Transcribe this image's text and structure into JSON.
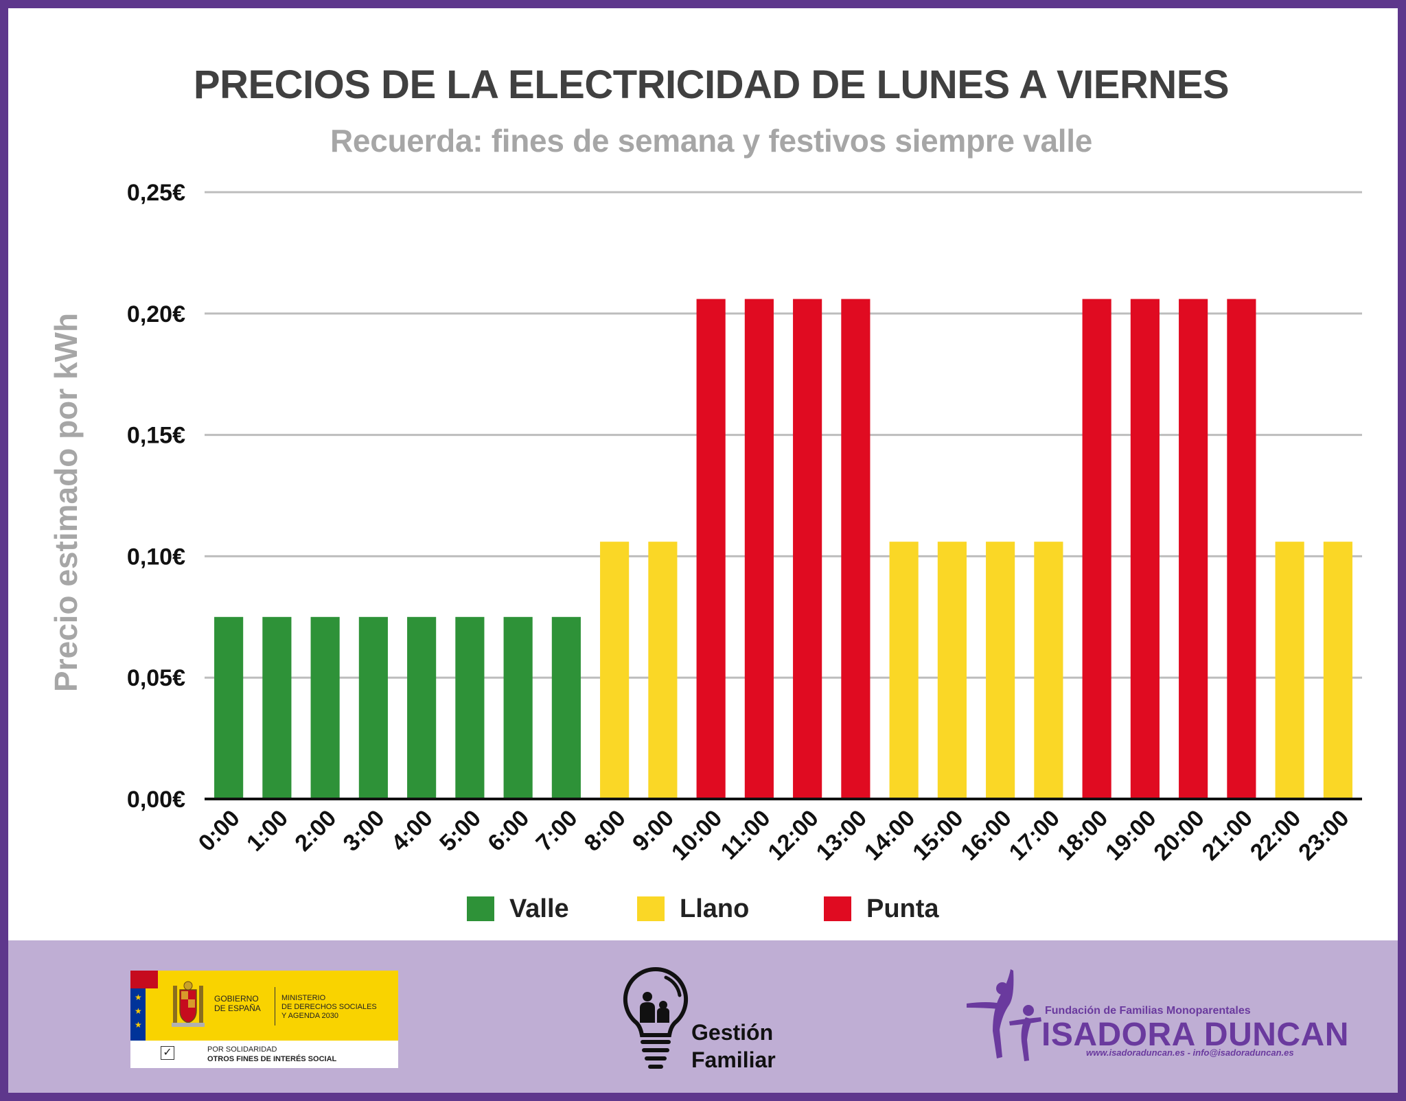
{
  "header": {
    "title": "PRECIOS DE LA ELECTRICIDAD DE LUNES A VIERNES",
    "subtitle": "Recuerda: fines de semana y festivos siempre valle"
  },
  "chart_data": {
    "type": "bar",
    "ylabel": "Precio estimado por kWh",
    "xlabel": "",
    "ylim": [
      0,
      0.25
    ],
    "yticks": [
      {
        "value": 0,
        "label": "0,00€"
      },
      {
        "value": 0.05,
        "label": "0,05€"
      },
      {
        "value": 0.1,
        "label": "0,10€"
      },
      {
        "value": 0.15,
        "label": "0,15€"
      },
      {
        "value": 0.2,
        "label": "0,20€"
      },
      {
        "value": 0.25,
        "label": "0,25€"
      }
    ],
    "grid": true,
    "categories": [
      "0:00",
      "1:00",
      "2:00",
      "3:00",
      "4:00",
      "5:00",
      "6:00",
      "7:00",
      "8:00",
      "9:00",
      "10:00",
      "11:00",
      "12:00",
      "13:00",
      "14:00",
      "15:00",
      "16:00",
      "17:00",
      "18:00",
      "19:00",
      "20:00",
      "21:00",
      "22:00",
      "23:00"
    ],
    "values": [
      0.075,
      0.075,
      0.075,
      0.075,
      0.075,
      0.075,
      0.075,
      0.075,
      0.106,
      0.106,
      0.206,
      0.206,
      0.206,
      0.206,
      0.106,
      0.106,
      0.106,
      0.106,
      0.206,
      0.206,
      0.206,
      0.206,
      0.106,
      0.106
    ],
    "periods": [
      "valle",
      "valle",
      "valle",
      "valle",
      "valle",
      "valle",
      "valle",
      "valle",
      "llano",
      "llano",
      "punta",
      "punta",
      "punta",
      "punta",
      "llano",
      "llano",
      "llano",
      "llano",
      "punta",
      "punta",
      "punta",
      "punta",
      "llano",
      "llano"
    ],
    "legend": [
      {
        "key": "valle",
        "label": "Valle",
        "color": "#2e9238"
      },
      {
        "key": "llano",
        "label": "Llano",
        "color": "#fad726"
      },
      {
        "key": "punta",
        "label": "Punta",
        "color": "#e00b21"
      }
    ],
    "legend_position": "bottom"
  },
  "footer": {
    "gov": {
      "line1": "GOBIERNO",
      "line2": "DE ESPAÑA",
      "ministry1": "MINISTERIO",
      "ministry2": "DE DERECHOS SOCIALES",
      "ministry3": "Y AGENDA 2030",
      "solidaridad": "POR SOLIDARIDAD",
      "fines": "OTROS FINES DE INTERÉS SOCIAL"
    },
    "gestion_line1": "Gestión",
    "gestion_line2": "Familiar",
    "fundacion": "Fundación de Familias Monoparentales",
    "isadora": "ISADORA DUNCAN",
    "web": "www.isadoraduncan.es - info@isadoraduncan.es"
  },
  "colors": {
    "frame": "#5e378c",
    "footer_bg": "#bfaed4",
    "brand_purple": "#6a3a9e"
  }
}
